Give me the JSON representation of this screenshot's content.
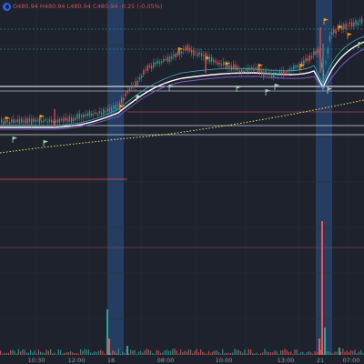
{
  "header": {
    "ohlc": "O480.94  H480.94  L480.94  C480.94  -0.25 (-0.05%)"
  },
  "time_axis": {
    "labels": [
      "10:30",
      "12:00",
      "18",
      "08:00",
      "10:00",
      "13:00",
      "21",
      "07:00"
    ]
  },
  "colors": {
    "background": "#1e222d",
    "up": "#26a69a",
    "down": "#ef5350",
    "session_highlight": "#2a4a7a",
    "flag_orange": "#f7931a",
    "flag_green": "#a5d6a7",
    "sma_dotted": "#e6e26a"
  }
}
